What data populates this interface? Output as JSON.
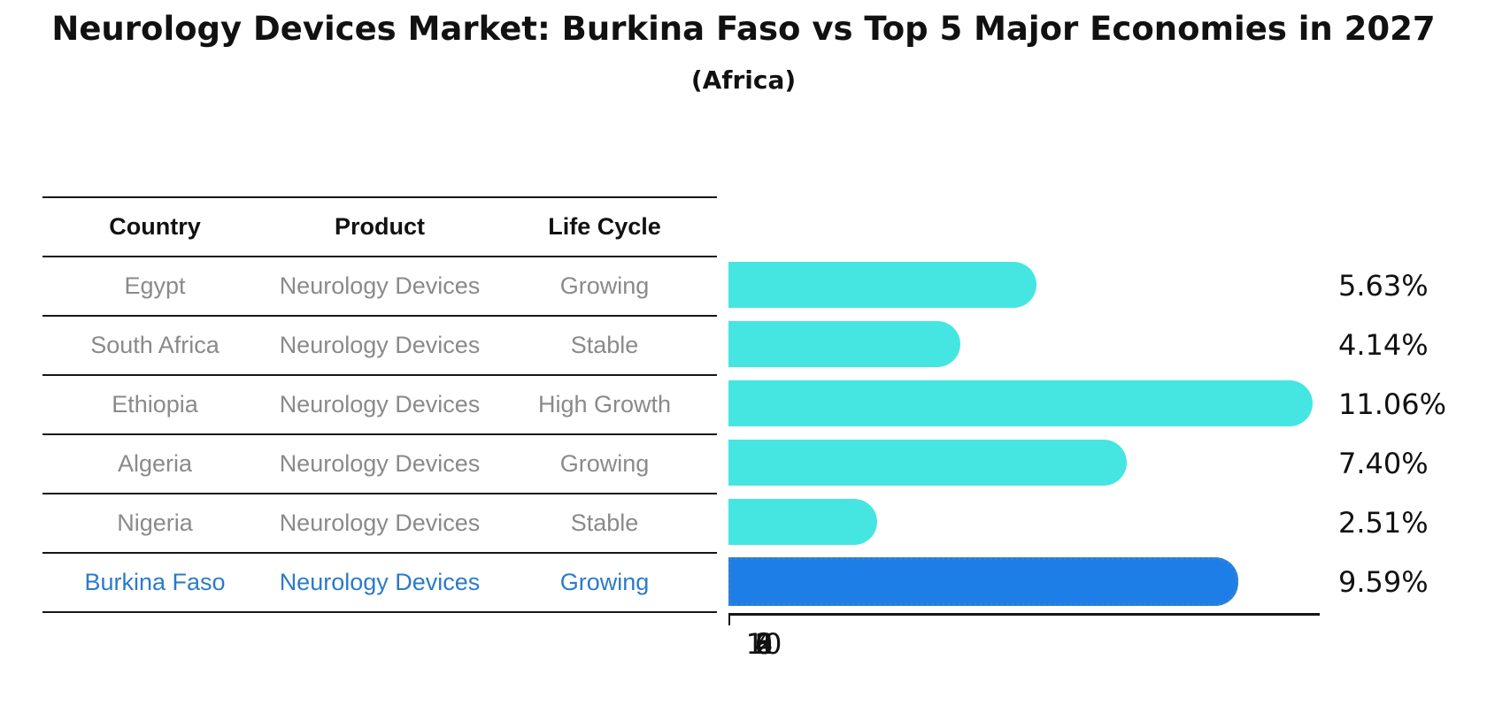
{
  "title": "Neurology Devices Market: Burkina Faso vs Top 5 Major Economies in 2027",
  "subtitle": "(Africa)",
  "table": {
    "headers": [
      "Country",
      "Product",
      "Life Cycle"
    ],
    "rows": [
      {
        "country": "Egypt",
        "product": "Neurology Devices",
        "life_cycle": "Growing",
        "highlighted": false
      },
      {
        "country": "South Africa",
        "product": "Neurology Devices",
        "life_cycle": "Stable",
        "highlighted": false
      },
      {
        "country": "Ethiopia",
        "product": "Neurology Devices",
        "life_cycle": "High Growth",
        "highlighted": false
      },
      {
        "country": "Algeria",
        "product": "Neurology Devices",
        "life_cycle": "Growing",
        "highlighted": false
      },
      {
        "country": "Nigeria",
        "product": "Neurology Devices",
        "life_cycle": "Stable",
        "highlighted": false
      },
      {
        "country": "Burkina Faso",
        "product": "Neurology Devices",
        "life_cycle": "Growing",
        "highlighted": true
      }
    ]
  },
  "chart_data": {
    "type": "bar",
    "orientation": "horizontal",
    "title": "Neurology Devices Market: Burkina Faso vs Top 5 Major Economies in 2027",
    "subtitle": "(Africa)",
    "categories": [
      "Egypt",
      "South Africa",
      "Ethiopia",
      "Algeria",
      "Nigeria",
      "Burkina Faso"
    ],
    "values": [
      5.63,
      4.14,
      11.06,
      7.4,
      2.51,
      9.59
    ],
    "value_labels": [
      "5.63%",
      "4.14%",
      "11.06%",
      "7.40%",
      "2.51%",
      "9.59%"
    ],
    "x_ticks": [
      "0",
      "2",
      "4",
      "6",
      "8",
      "10"
    ],
    "xlim": [
      0,
      11.6
    ],
    "grid": false,
    "legend": "none",
    "bar_color": "#45e6e1",
    "highlight_index": 5,
    "highlight_bar_color": "#1e7ee8",
    "highlight_border_color": "#3b82c4",
    "highlight_border_style": "dotted"
  },
  "colors": {
    "background": "#ffffff",
    "table_line": "#161616",
    "header_text": "#111111",
    "table_text": "#8a8a8a",
    "highlight_text": "#2b7bc9",
    "axis_text": "#111111"
  }
}
